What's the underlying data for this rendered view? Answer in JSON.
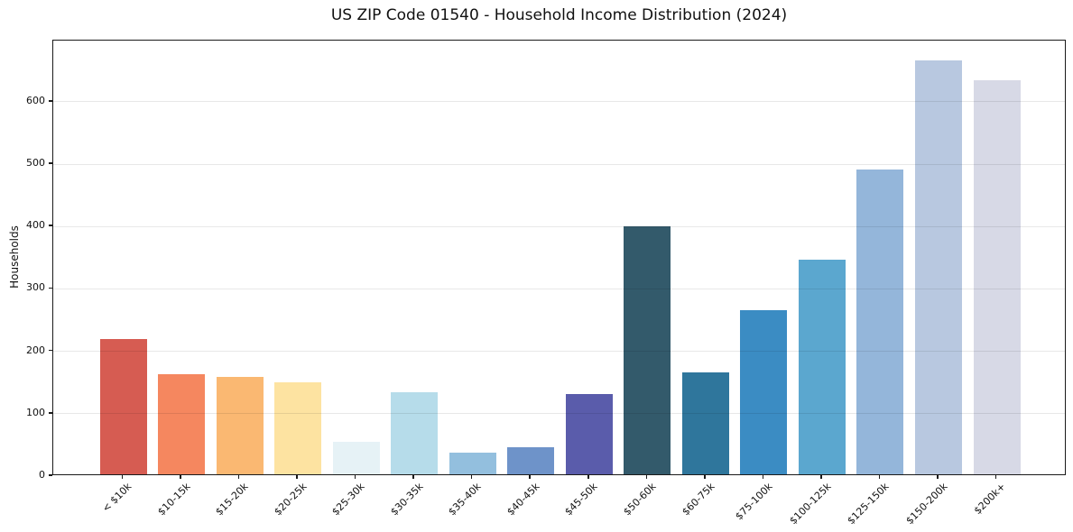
{
  "chart_data": {
    "type": "bar",
    "title": "US ZIP Code 01540 - Household Income Distribution (2024)",
    "xlabel": "",
    "ylabel": "Households",
    "categories": [
      "< $10k",
      "$10-15k",
      "$15-20k",
      "$20-25k",
      "$25-30k",
      "$30-35k",
      "$35-40k",
      "$40-45k",
      "$45-50k",
      "$50-60k",
      "$60-75k",
      "$75-100k",
      "$100-125k",
      "$125-150k",
      "$150-200k",
      "$200k+"
    ],
    "values": [
      217,
      161,
      156,
      148,
      52,
      132,
      34,
      44,
      128,
      397,
      164,
      263,
      344,
      488,
      663,
      631
    ],
    "bar_colors": [
      "#d65c52",
      "#f5875f",
      "#fab872",
      "#fde3a1",
      "#e6f2f6",
      "#b6dcea",
      "#93bfde",
      "#6e93c9",
      "#5a5cab",
      "#335a6b",
      "#2f769c",
      "#3b8cc3",
      "#5ba7cf",
      "#94b6da",
      "#b8c8e0",
      "#d7d9e6"
    ],
    "yticks": [
      0,
      100,
      200,
      300,
      400,
      500,
      600
    ],
    "ylim": [
      0,
      698
    ],
    "grid": "horizontal-only",
    "gridline_color": "#e8e8e8",
    "axis_color": "#1a1a1a",
    "background_color": "#ffffff",
    "legend": "none",
    "x_tick_rotation_deg": 45
  }
}
